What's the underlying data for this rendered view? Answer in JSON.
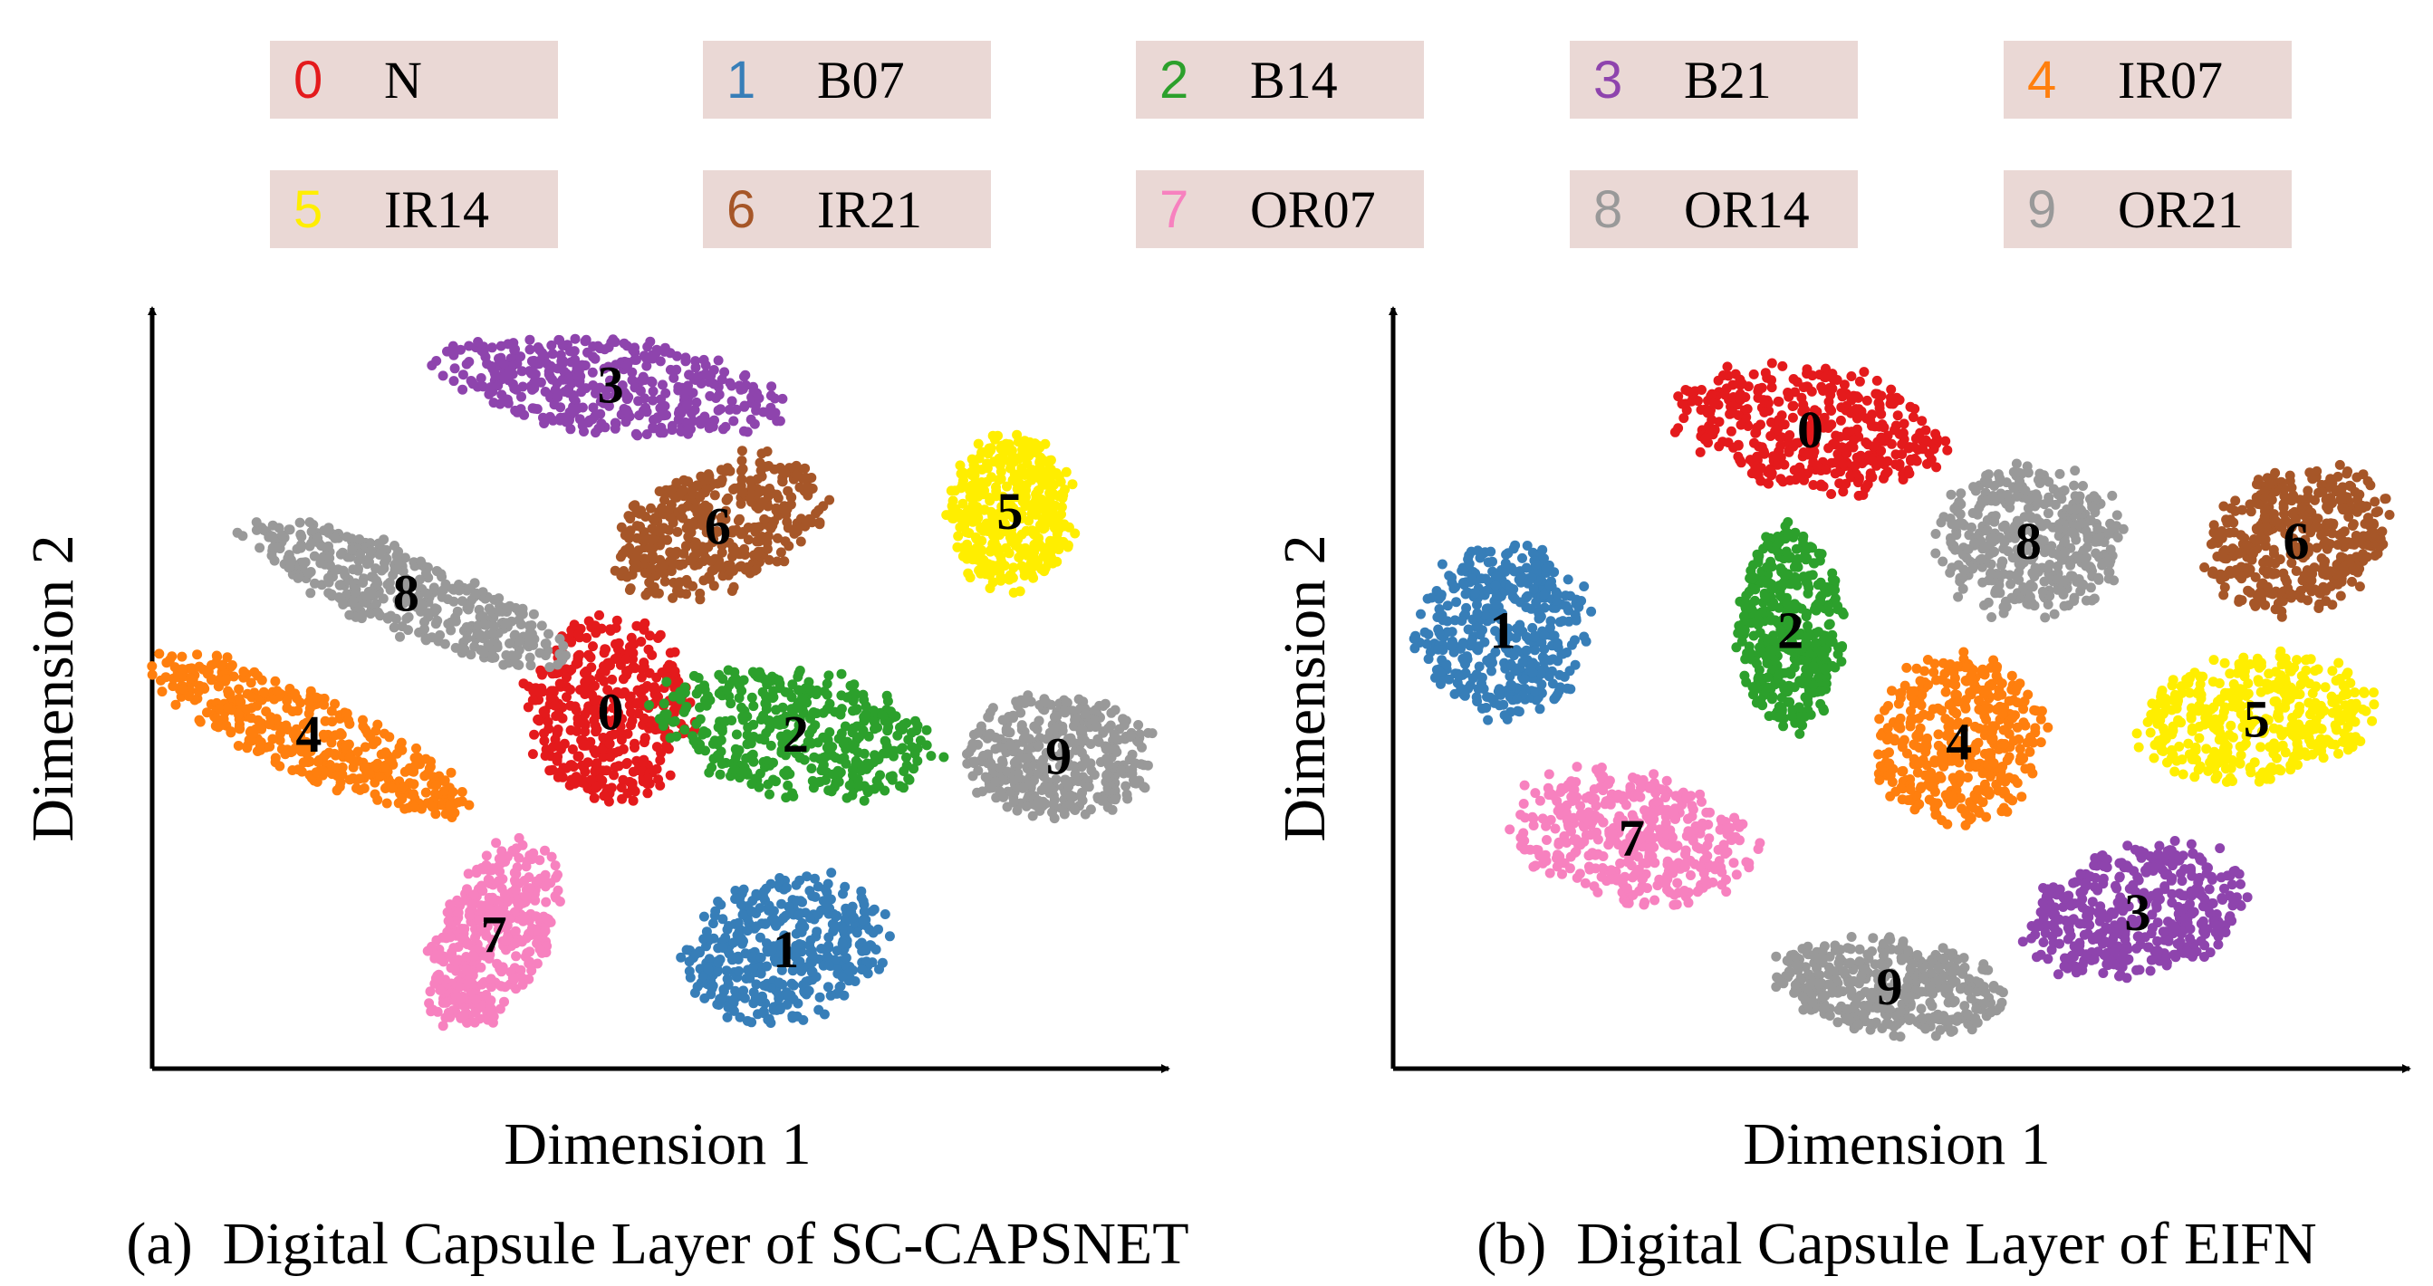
{
  "legend": [
    {
      "num": "0",
      "label": "N",
      "color": "#e41a1c"
    },
    {
      "num": "1",
      "label": "B07",
      "color": "#377eb8"
    },
    {
      "num": "2",
      "label": "B14",
      "color": "#2ca02c"
    },
    {
      "num": "3",
      "label": "B21",
      "color": "#8e44ad"
    },
    {
      "num": "4",
      "label": "IR07",
      "color": "#ff7f0e"
    },
    {
      "num": "5",
      "label": "IR14",
      "color": "#ffee00"
    },
    {
      "num": "6",
      "label": "IR21",
      "color": "#a65628"
    },
    {
      "num": "7",
      "label": "OR07",
      "color": "#f781bf"
    },
    {
      "num": "8",
      "label": "OR14",
      "color": "#999999"
    },
    {
      "num": "9",
      "label": "OR21",
      "color": "#999999"
    }
  ],
  "chart_data": [
    {
      "type": "scatter",
      "caption": "(a)  Digital Capsule Layer of SC-CAPSNET",
      "xlabel": "Dimension 1",
      "ylabel": "Dimension 2",
      "grid": false,
      "clusters": [
        {
          "label": "0",
          "cx": 0.455,
          "cy": 0.475,
          "rx": 0.085,
          "ry": 0.125,
          "rot": 0
        },
        {
          "label": "1",
          "cx": 0.635,
          "cy": 0.155,
          "rx": 0.105,
          "ry": 0.095,
          "rot": -15
        },
        {
          "label": "2",
          "cx": 0.645,
          "cy": 0.445,
          "rx": 0.145,
          "ry": 0.085,
          "rot": 10
        },
        {
          "label": "3",
          "cx": 0.455,
          "cy": 0.915,
          "rx": 0.175,
          "ry": 0.065,
          "rot": 8
        },
        {
          "label": "4",
          "cx": 0.145,
          "cy": 0.445,
          "rx": 0.175,
          "ry": 0.055,
          "rot": 25
        },
        {
          "label": "5",
          "cx": 0.865,
          "cy": 0.745,
          "rx": 0.065,
          "ry": 0.105,
          "rot": 0
        },
        {
          "label": "6",
          "cx": 0.565,
          "cy": 0.725,
          "rx": 0.115,
          "ry": 0.085,
          "rot": -20
        },
        {
          "label": "7",
          "cx": 0.335,
          "cy": 0.175,
          "rx": 0.055,
          "ry": 0.135,
          "rot": 25
        },
        {
          "label": "8",
          "cx": 0.245,
          "cy": 0.635,
          "rx": 0.175,
          "ry": 0.055,
          "rot": 22
        },
        {
          "label": "9",
          "cx": 0.915,
          "cy": 0.415,
          "rx": 0.095,
          "ry": 0.085,
          "rot": 0
        }
      ]
    },
    {
      "type": "scatter",
      "caption": "(b)  Digital Capsule Layer of EIFN",
      "xlabel": "Dimension 1",
      "ylabel": "Dimension 2",
      "grid": false,
      "clusters": [
        {
          "label": "0",
          "cx": 0.405,
          "cy": 0.855,
          "rx": 0.135,
          "ry": 0.085,
          "rot": 8
        },
        {
          "label": "1",
          "cx": 0.095,
          "cy": 0.585,
          "rx": 0.085,
          "ry": 0.115,
          "rot": 0
        },
        {
          "label": "2",
          "cx": 0.385,
          "cy": 0.585,
          "rx": 0.052,
          "ry": 0.135,
          "rot": 0
        },
        {
          "label": "3",
          "cx": 0.735,
          "cy": 0.205,
          "rx": 0.115,
          "ry": 0.085,
          "rot": -12
        },
        {
          "label": "4",
          "cx": 0.555,
          "cy": 0.435,
          "rx": 0.085,
          "ry": 0.115,
          "rot": 0
        },
        {
          "label": "5",
          "cx": 0.855,
          "cy": 0.465,
          "rx": 0.115,
          "ry": 0.085,
          "rot": -8
        },
        {
          "label": "6",
          "cx": 0.895,
          "cy": 0.705,
          "rx": 0.095,
          "ry": 0.095,
          "rot": -20
        },
        {
          "label": "7",
          "cx": 0.225,
          "cy": 0.305,
          "rx": 0.125,
          "ry": 0.085,
          "rot": 12
        },
        {
          "label": "8",
          "cx": 0.625,
          "cy": 0.705,
          "rx": 0.095,
          "ry": 0.105,
          "rot": 0
        },
        {
          "label": "9",
          "cx": 0.485,
          "cy": 0.105,
          "rx": 0.115,
          "ry": 0.065,
          "rot": 8
        }
      ]
    }
  ]
}
